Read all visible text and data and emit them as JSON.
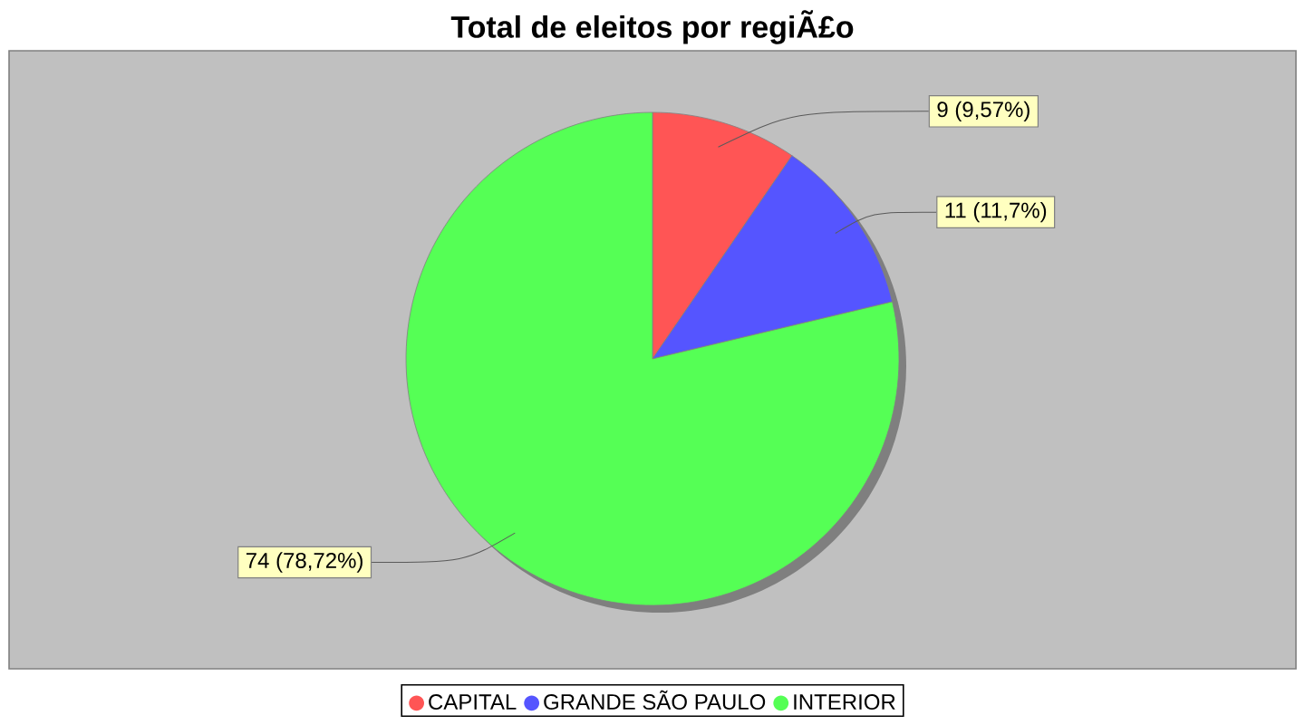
{
  "chart_data": {
    "type": "pie",
    "title": "Total de eleitos por regiÃ£o",
    "categories": [
      "CAPITAL",
      "GRANDE SÃO PAULO",
      "INTERIOR"
    ],
    "values": [
      9,
      11,
      74
    ],
    "colors": [
      "#ff5555",
      "#5555ff",
      "#55ff55"
    ],
    "value_labels": [
      "9 (9,57%)",
      "11 (11,7%)",
      "74 (78,72%)"
    ],
    "legend": "bottom"
  }
}
